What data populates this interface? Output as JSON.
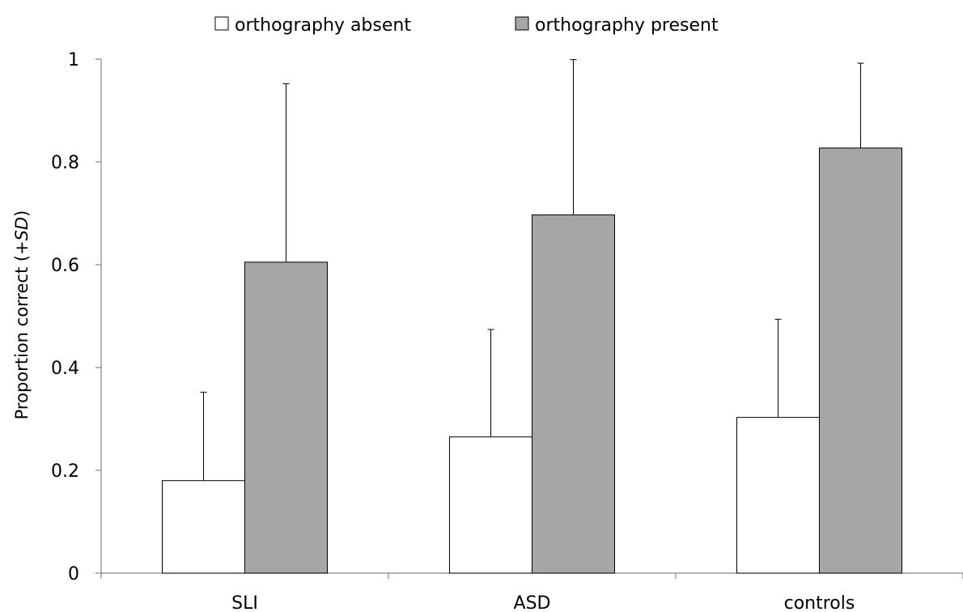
{
  "chart_data": {
    "type": "bar",
    "categories": [
      "SLI",
      "ASD",
      "controls"
    ],
    "series": [
      {
        "name": "orthography absent",
        "values": [
          0.18,
          0.265,
          0.303
        ],
        "sd_upper": [
          0.352,
          0.474,
          0.494
        ],
        "color": "#ffffff"
      },
      {
        "name": "orthography present",
        "values": [
          0.605,
          0.697,
          0.827
        ],
        "sd_upper": [
          0.952,
          0.999,
          0.992
        ],
        "color": "#a6a6a6"
      }
    ],
    "ylabel_text": "Proportion correct (",
    "ylabel_italic": "+SD",
    "ylabel_close": ")",
    "ylim": [
      0,
      1
    ],
    "yticks": [
      0,
      0.2,
      0.4,
      0.6,
      0.8,
      1
    ],
    "ytick_labels": [
      "0",
      "0.2",
      "0.4",
      "0.6",
      "0.8",
      "1"
    ],
    "legend_position": "top",
    "grid": false
  }
}
